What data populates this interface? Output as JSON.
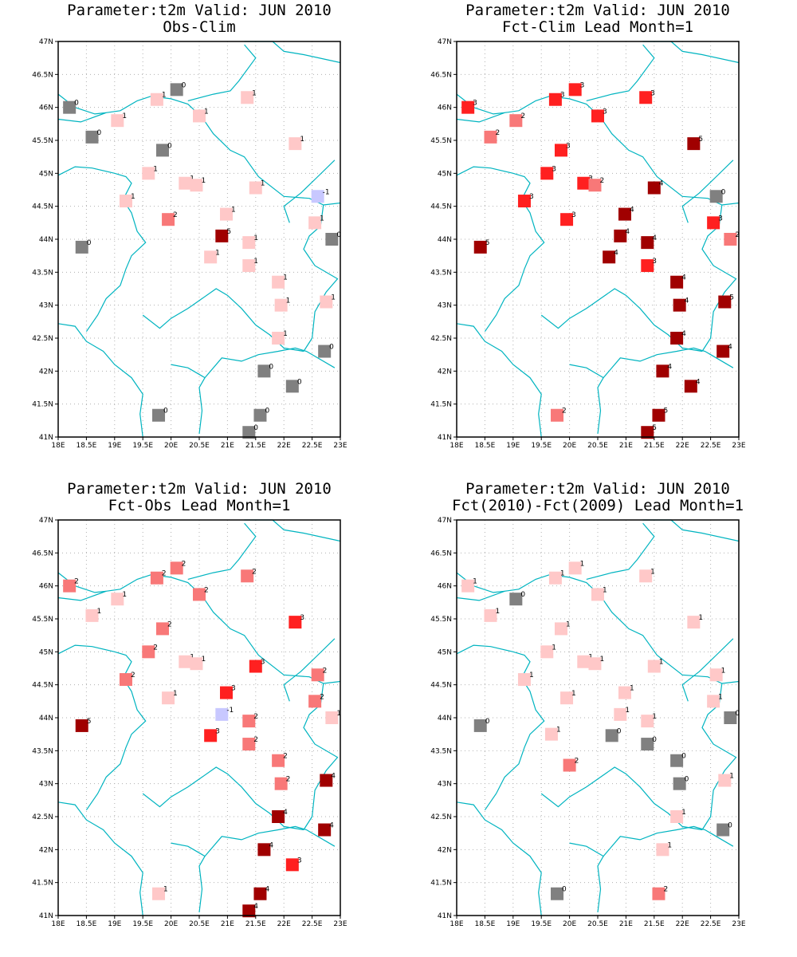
{
  "figure": {
    "colors": {
      "-1": "#c8c8ff",
      "0": "#808080",
      "1": "#ffc8c8",
      "2": "#f87878",
      "3": "#ff2020",
      "4": "#a00000",
      "5": "#a00000",
      "coast": "#00b4c0",
      "frame": "#000000",
      "grid": "#b0b0b0"
    },
    "lon_ticks": [
      "18E",
      "18.5E",
      "19E",
      "19.5E",
      "20E",
      "20.5E",
      "21E",
      "21.5E",
      "22E",
      "22.5E",
      "23E"
    ],
    "lat_ticks": [
      "41N",
      "41.5N",
      "42N",
      "42.5N",
      "43N",
      "43.5N",
      "44N",
      "44.5N",
      "45N",
      "45.5N",
      "46N",
      "46.5N",
      "47N"
    ],
    "lon_range": [
      18,
      23
    ],
    "lat_range": [
      41,
      47
    ]
  },
  "panels": [
    {
      "title1": "Parameter:t2m Valid: JUN 2010",
      "title2": "Obs-Clim",
      "stations": [
        {
          "lon": 18.2,
          "lat": 46.0,
          "v": 0
        },
        {
          "lon": 18.6,
          "lat": 45.55,
          "v": 0
        },
        {
          "lon": 19.05,
          "lat": 45.8,
          "v": 1
        },
        {
          "lon": 19.75,
          "lat": 46.12,
          "v": 1
        },
        {
          "lon": 20.1,
          "lat": 46.27,
          "v": 0
        },
        {
          "lon": 20.5,
          "lat": 45.87,
          "v": 1
        },
        {
          "lon": 19.85,
          "lat": 45.35,
          "v": 0
        },
        {
          "lon": 19.6,
          "lat": 45.0,
          "v": 1
        },
        {
          "lon": 20.25,
          "lat": 44.85,
          "v": 1
        },
        {
          "lon": 20.45,
          "lat": 44.82,
          "v": 1
        },
        {
          "lon": 21.35,
          "lat": 46.15,
          "v": 1
        },
        {
          "lon": 22.2,
          "lat": 45.45,
          "v": 1
        },
        {
          "lon": 21.5,
          "lat": 44.78,
          "v": 1
        },
        {
          "lon": 22.6,
          "lat": 44.65,
          "v": -1
        },
        {
          "lon": 19.2,
          "lat": 44.58,
          "v": 1
        },
        {
          "lon": 19.95,
          "lat": 44.3,
          "v": 2
        },
        {
          "lon": 20.98,
          "lat": 44.38,
          "v": 1
        },
        {
          "lon": 20.9,
          "lat": 44.05,
          "v": 5
        },
        {
          "lon": 22.55,
          "lat": 44.25,
          "v": 1
        },
        {
          "lon": 22.85,
          "lat": 44.0,
          "v": 0
        },
        {
          "lon": 18.42,
          "lat": 43.88,
          "v": 0
        },
        {
          "lon": 21.38,
          "lat": 43.95,
          "v": 1
        },
        {
          "lon": 20.7,
          "lat": 43.73,
          "v": 1
        },
        {
          "lon": 21.38,
          "lat": 43.6,
          "v": 1
        },
        {
          "lon": 21.9,
          "lat": 43.35,
          "v": 1
        },
        {
          "lon": 21.95,
          "lat": 43.0,
          "v": 1
        },
        {
          "lon": 22.75,
          "lat": 43.05,
          "v": 1
        },
        {
          "lon": 21.9,
          "lat": 42.5,
          "v": 1
        },
        {
          "lon": 22.72,
          "lat": 42.3,
          "v": 0
        },
        {
          "lon": 21.65,
          "lat": 42.0,
          "v": 0
        },
        {
          "lon": 22.15,
          "lat": 41.77,
          "v": 0
        },
        {
          "lon": 19.78,
          "lat": 41.33,
          "v": 0
        },
        {
          "lon": 21.58,
          "lat": 41.33,
          "v": 0
        },
        {
          "lon": 21.38,
          "lat": 41.07,
          "v": 0
        }
      ]
    },
    {
      "title1": "Parameter:t2m Valid: JUN 2010",
      "title2": "Fct-Clim Lead Month=1",
      "stations": [
        {
          "lon": 18.2,
          "lat": 46.0,
          "v": 3
        },
        {
          "lon": 18.6,
          "lat": 45.55,
          "v": 2
        },
        {
          "lon": 19.05,
          "lat": 45.8,
          "v": 2
        },
        {
          "lon": 19.75,
          "lat": 46.12,
          "v": 3
        },
        {
          "lon": 20.1,
          "lat": 46.27,
          "v": 3
        },
        {
          "lon": 20.5,
          "lat": 45.87,
          "v": 3
        },
        {
          "lon": 19.85,
          "lat": 45.35,
          "v": 3
        },
        {
          "lon": 19.6,
          "lat": 45.0,
          "v": 3
        },
        {
          "lon": 20.25,
          "lat": 44.85,
          "v": 3
        },
        {
          "lon": 20.45,
          "lat": 44.82,
          "v": 2
        },
        {
          "lon": 21.35,
          "lat": 46.15,
          "v": 3
        },
        {
          "lon": 22.2,
          "lat": 45.45,
          "v": 5
        },
        {
          "lon": 21.5,
          "lat": 44.78,
          "v": 4
        },
        {
          "lon": 22.6,
          "lat": 44.65,
          "v": 0
        },
        {
          "lon": 19.2,
          "lat": 44.58,
          "v": 3
        },
        {
          "lon": 19.95,
          "lat": 44.3,
          "v": 3
        },
        {
          "lon": 20.98,
          "lat": 44.38,
          "v": 4
        },
        {
          "lon": 20.9,
          "lat": 44.05,
          "v": 4
        },
        {
          "lon": 22.55,
          "lat": 44.25,
          "v": 3
        },
        {
          "lon": 22.85,
          "lat": 44.0,
          "v": 2
        },
        {
          "lon": 18.42,
          "lat": 43.88,
          "v": 5
        },
        {
          "lon": 21.38,
          "lat": 43.95,
          "v": 4
        },
        {
          "lon": 20.7,
          "lat": 43.73,
          "v": 4
        },
        {
          "lon": 21.38,
          "lat": 43.6,
          "v": 3
        },
        {
          "lon": 21.9,
          "lat": 43.35,
          "v": 4
        },
        {
          "lon": 21.95,
          "lat": 43.0,
          "v": 4
        },
        {
          "lon": 22.75,
          "lat": 43.05,
          "v": 5
        },
        {
          "lon": 21.9,
          "lat": 42.5,
          "v": 4
        },
        {
          "lon": 22.72,
          "lat": 42.3,
          "v": 4
        },
        {
          "lon": 21.65,
          "lat": 42.0,
          "v": 4
        },
        {
          "lon": 22.15,
          "lat": 41.77,
          "v": 4
        },
        {
          "lon": 19.78,
          "lat": 41.33,
          "v": 2
        },
        {
          "lon": 21.58,
          "lat": 41.33,
          "v": 5
        },
        {
          "lon": 21.38,
          "lat": 41.07,
          "v": 5
        }
      ]
    },
    {
      "title1": "Parameter:t2m Valid: JUN 2010",
      "title2": "Fct-Obs Lead Month=1",
      "stations": [
        {
          "lon": 18.2,
          "lat": 46.0,
          "v": 2
        },
        {
          "lon": 18.6,
          "lat": 45.55,
          "v": 1
        },
        {
          "lon": 19.05,
          "lat": 45.8,
          "v": 1
        },
        {
          "lon": 19.75,
          "lat": 46.12,
          "v": 2
        },
        {
          "lon": 20.1,
          "lat": 46.27,
          "v": 2
        },
        {
          "lon": 20.5,
          "lat": 45.87,
          "v": 2
        },
        {
          "lon": 19.85,
          "lat": 45.35,
          "v": 2
        },
        {
          "lon": 19.6,
          "lat": 45.0,
          "v": 2
        },
        {
          "lon": 20.25,
          "lat": 44.85,
          "v": 1
        },
        {
          "lon": 20.45,
          "lat": 44.82,
          "v": 1
        },
        {
          "lon": 21.35,
          "lat": 46.15,
          "v": 2
        },
        {
          "lon": 22.2,
          "lat": 45.45,
          "v": 3
        },
        {
          "lon": 21.5,
          "lat": 44.78,
          "v": 3
        },
        {
          "lon": 22.6,
          "lat": 44.65,
          "v": 2
        },
        {
          "lon": 19.2,
          "lat": 44.58,
          "v": 2
        },
        {
          "lon": 19.95,
          "lat": 44.3,
          "v": 1
        },
        {
          "lon": 20.98,
          "lat": 44.38,
          "v": 3
        },
        {
          "lon": 20.9,
          "lat": 44.05,
          "v": -1
        },
        {
          "lon": 22.55,
          "lat": 44.25,
          "v": 2
        },
        {
          "lon": 22.85,
          "lat": 44.0,
          "v": 1
        },
        {
          "lon": 18.42,
          "lat": 43.88,
          "v": 5
        },
        {
          "lon": 21.38,
          "lat": 43.95,
          "v": 2
        },
        {
          "lon": 20.7,
          "lat": 43.73,
          "v": 3
        },
        {
          "lon": 21.38,
          "lat": 43.6,
          "v": 2
        },
        {
          "lon": 21.9,
          "lat": 43.35,
          "v": 2
        },
        {
          "lon": 21.95,
          "lat": 43.0,
          "v": 2
        },
        {
          "lon": 22.75,
          "lat": 43.05,
          "v": 4
        },
        {
          "lon": 21.9,
          "lat": 42.5,
          "v": 4
        },
        {
          "lon": 22.72,
          "lat": 42.3,
          "v": 4
        },
        {
          "lon": 21.65,
          "lat": 42.0,
          "v": 4
        },
        {
          "lon": 22.15,
          "lat": 41.77,
          "v": 3
        },
        {
          "lon": 19.78,
          "lat": 41.33,
          "v": 1
        },
        {
          "lon": 21.58,
          "lat": 41.33,
          "v": 4
        },
        {
          "lon": 21.38,
          "lat": 41.07,
          "v": 4
        }
      ]
    },
    {
      "title1": "Parameter:t2m Valid: JUN 2010",
      "title2": "Fct(2010)-Fct(2009) Lead Month=1",
      "stations": [
        {
          "lon": 18.2,
          "lat": 46.0,
          "v": 1
        },
        {
          "lon": 18.6,
          "lat": 45.55,
          "v": 1
        },
        {
          "lon": 19.05,
          "lat": 45.8,
          "v": 0
        },
        {
          "lon": 19.75,
          "lat": 46.12,
          "v": 1
        },
        {
          "lon": 20.1,
          "lat": 46.27,
          "v": 1
        },
        {
          "lon": 20.5,
          "lat": 45.87,
          "v": 1
        },
        {
          "lon": 19.85,
          "lat": 45.35,
          "v": 1
        },
        {
          "lon": 19.6,
          "lat": 45.0,
          "v": 1
        },
        {
          "lon": 20.25,
          "lat": 44.85,
          "v": 1
        },
        {
          "lon": 20.45,
          "lat": 44.82,
          "v": 1
        },
        {
          "lon": 21.35,
          "lat": 46.15,
          "v": 1
        },
        {
          "lon": 22.2,
          "lat": 45.45,
          "v": 1
        },
        {
          "lon": 21.5,
          "lat": 44.78,
          "v": 1
        },
        {
          "lon": 22.6,
          "lat": 44.65,
          "v": 1
        },
        {
          "lon": 19.2,
          "lat": 44.58,
          "v": 1
        },
        {
          "lon": 19.95,
          "lat": 44.3,
          "v": 1
        },
        {
          "lon": 20.98,
          "lat": 44.38,
          "v": 1
        },
        {
          "lon": 20.9,
          "lat": 44.05,
          "v": 1
        },
        {
          "lon": 22.55,
          "lat": 44.25,
          "v": 1
        },
        {
          "lon": 22.85,
          "lat": 44.0,
          "v": 0
        },
        {
          "lon": 18.42,
          "lat": 43.88,
          "v": 0
        },
        {
          "lon": 21.38,
          "lat": 43.95,
          "v": 1
        },
        {
          "lon": 19.68,
          "lat": 43.75,
          "v": 1
        },
        {
          "lon": 20.75,
          "lat": 43.73,
          "v": 0
        },
        {
          "lon": 21.38,
          "lat": 43.6,
          "v": 0
        },
        {
          "lon": 20.0,
          "lat": 43.28,
          "v": 2
        },
        {
          "lon": 21.9,
          "lat": 43.35,
          "v": 0
        },
        {
          "lon": 21.95,
          "lat": 43.0,
          "v": 0
        },
        {
          "lon": 22.75,
          "lat": 43.05,
          "v": 1
        },
        {
          "lon": 21.9,
          "lat": 42.5,
          "v": 1
        },
        {
          "lon": 22.72,
          "lat": 42.3,
          "v": 0
        },
        {
          "lon": 21.65,
          "lat": 42.0,
          "v": 1
        },
        {
          "lon": 19.78,
          "lat": 41.33,
          "v": 0
        },
        {
          "lon": 21.58,
          "lat": 41.33,
          "v": 2
        }
      ]
    }
  ]
}
